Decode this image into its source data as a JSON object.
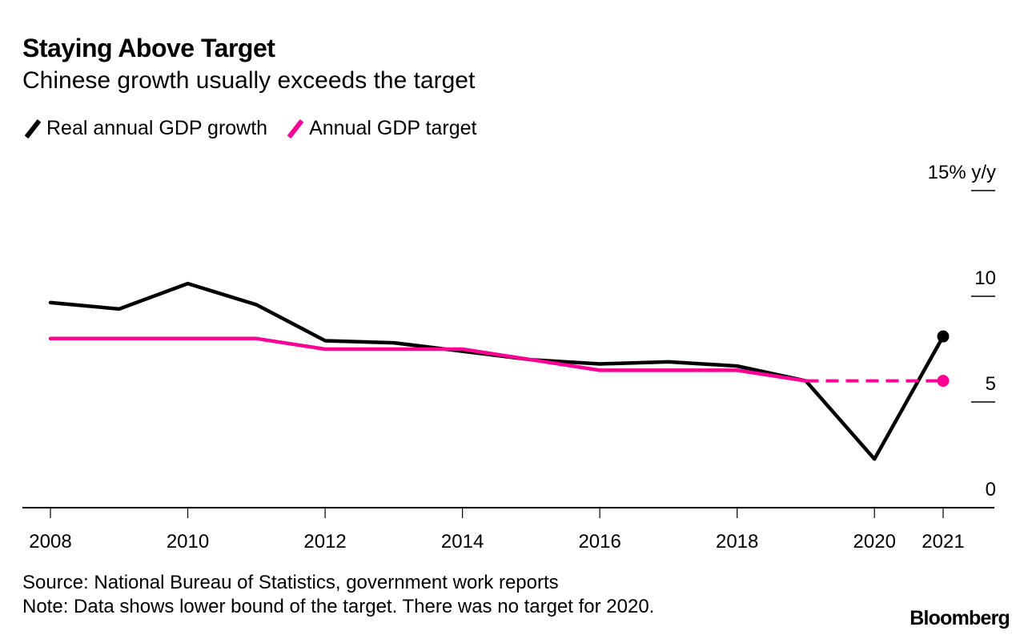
{
  "chart_data": {
    "type": "line",
    "title": "Staying Above Target",
    "subtitle": "Chinese growth usually exceeds the target",
    "xlabel": "",
    "ylabel": "% y/y",
    "x": [
      2008,
      2009,
      2010,
      2011,
      2012,
      2013,
      2014,
      2015,
      2016,
      2017,
      2018,
      2019,
      2020,
      2021
    ],
    "x_ticks": [
      2008,
      2010,
      2012,
      2014,
      2016,
      2018,
      2020,
      2021
    ],
    "x_tick_labels": [
      "2008",
      "2010",
      "2012",
      "2014",
      "2016",
      "2018",
      "2020",
      "2021"
    ],
    "ylim": [
      0,
      15
    ],
    "y_ticks": [
      0,
      5,
      10,
      15
    ],
    "y_tick_labels": [
      "0",
      "5",
      "10",
      "15% y/y"
    ],
    "y_axis_side": "right",
    "grid": false,
    "legend_position": "top-left",
    "series": [
      {
        "name": "Real annual GDP growth",
        "color": "#000000",
        "values": [
          9.7,
          9.4,
          10.6,
          9.6,
          7.9,
          7.8,
          7.4,
          7.0,
          6.8,
          6.9,
          6.7,
          6.0,
          2.3,
          8.1
        ],
        "end_marker": true
      },
      {
        "name": "Annual GDP target",
        "color": "#ff0095",
        "values": [
          8.0,
          8.0,
          8.0,
          8.0,
          7.5,
          7.5,
          7.5,
          7.0,
          6.5,
          6.5,
          6.5,
          6.0,
          null,
          6.0
        ],
        "dashed_gap_bridge": true,
        "end_marker": true
      }
    ],
    "source": "Source: National Bureau of Statistics, government work reports",
    "note": "Note: Data shows lower bound of the target. There was no target for 2020."
  },
  "branding": "Bloomberg"
}
